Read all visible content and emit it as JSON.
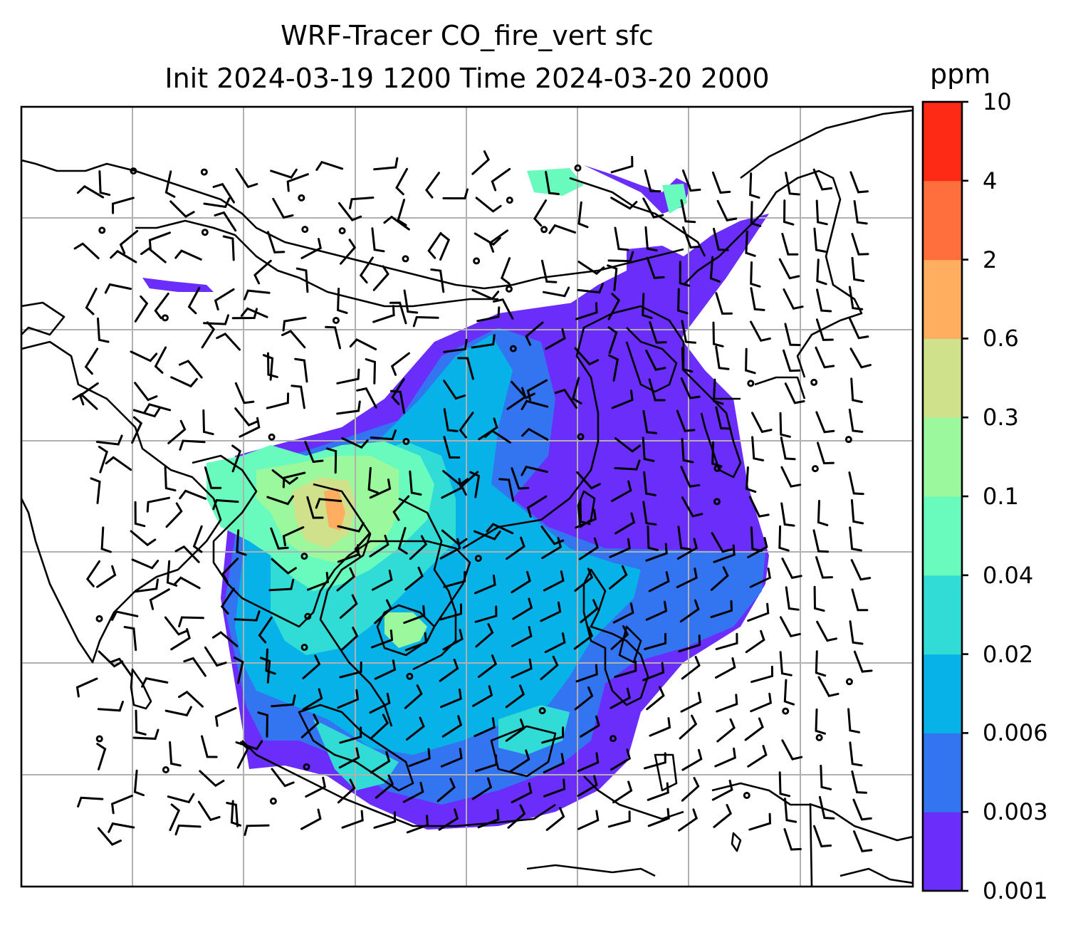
{
  "title": {
    "line1": "WRF-Tracer CO_fire_vert sfc",
    "line2": "Init 2024-03-19 1200 Time 2024-03-20 2000"
  },
  "colorbar": {
    "unit": "ppm",
    "levels": [
      "0.001",
      "0.003",
      "0.006",
      "0.02",
      "0.04",
      "0.1",
      "0.3",
      "0.6",
      "2",
      "4",
      "10"
    ],
    "colors": [
      "#6a2dfa",
      "#3374f0",
      "#06b2e8",
      "#31dcd7",
      "#69fbbd",
      "#9bf89c",
      "#cfe18b",
      "#ffae60",
      "#ff6f3d",
      "#ff2a16"
    ]
  },
  "map": {
    "region": "South and East Asia to Maritime Continent",
    "gridlines": true,
    "wind_barbs": true,
    "frame_color": "#000000",
    "gridline_color": "#b0b0b0"
  }
}
